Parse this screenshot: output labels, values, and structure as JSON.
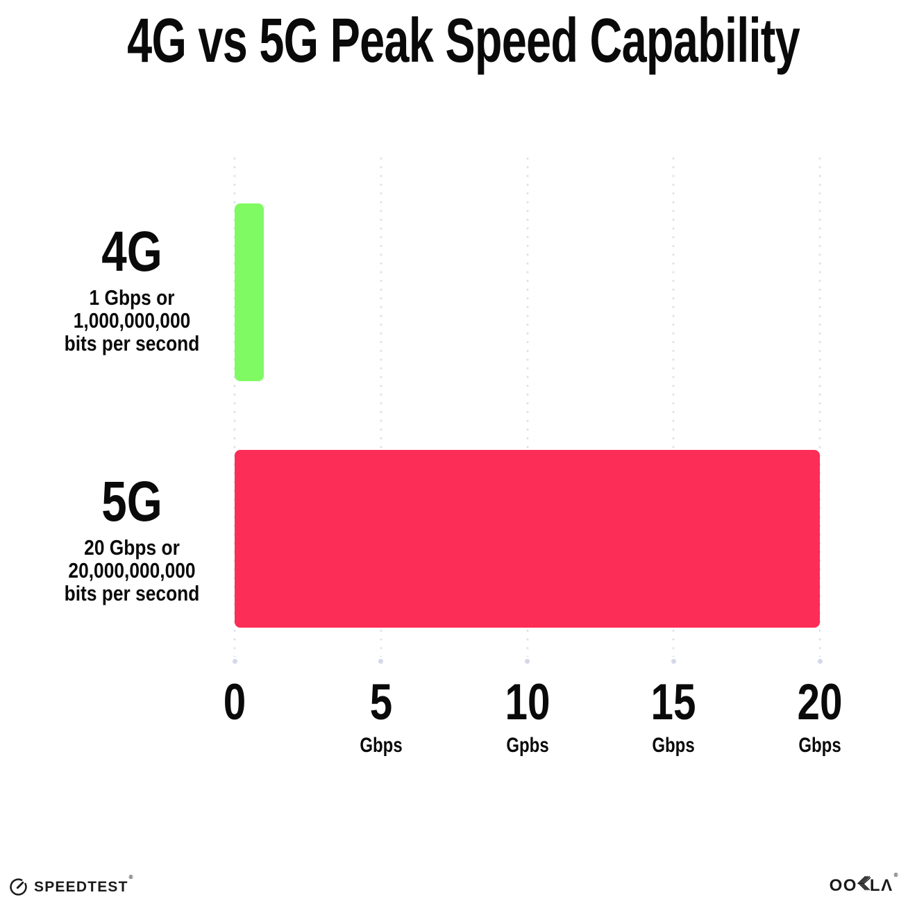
{
  "title": "4G vs 5G Peak Speed Capability",
  "chart_data": {
    "type": "bar",
    "orientation": "horizontal",
    "title": "4G vs 5G Peak Speed Capability",
    "categories": [
      "4G",
      "5G"
    ],
    "values": [
      1,
      20
    ],
    "xlim": [
      0,
      20
    ],
    "grid": "dotted vertical gridlines at 0, 5, 10, 15, 20",
    "legend": "none",
    "series": [
      {
        "name": "4G",
        "value": 1,
        "color": "#80FA62",
        "label_lines": [
          "1 Gbps or",
          "1,000,000,000",
          "bits per second"
        ]
      },
      {
        "name": "5G",
        "value": 20,
        "color": "#FC2D56",
        "label_lines": [
          "20 Gbps or",
          "20,000,000,000",
          "bits per second"
        ]
      }
    ],
    "x_ticks": [
      {
        "value": 0,
        "number": "0",
        "unit": ""
      },
      {
        "value": 5,
        "number": "5",
        "unit": "Gbps"
      },
      {
        "value": 10,
        "number": "10",
        "unit": "Gpbs"
      },
      {
        "value": 15,
        "number": "15",
        "unit": "Gbps"
      },
      {
        "value": 20,
        "number": "20",
        "unit": "Gbps"
      }
    ]
  },
  "footer": {
    "speedtest_label": "SPEEDTEST",
    "speedtest_mark": "®",
    "ookla_wordmark": "OOKLA",
    "ookla_display_left": "OO",
    "ookla_display_right": "LΛ",
    "ookla_mark": "®"
  },
  "colors": {
    "background": "#FFFFFF",
    "text": "#0A0A0A",
    "bar_4g": "#80FA62",
    "bar_5g": "#FC2D56",
    "gridline_dot": "#DFE1EC",
    "gridline_end_dot": "#D4D8E8",
    "logo": "#1A1A1A"
  }
}
